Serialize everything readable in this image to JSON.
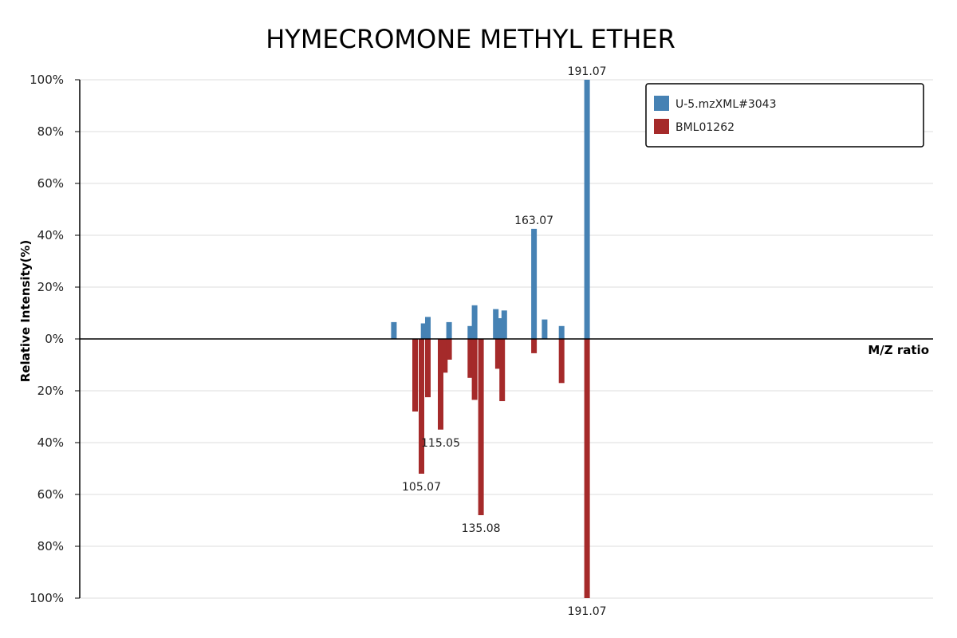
{
  "chart_data": {
    "type": "bar",
    "title": "HYMECROMONE METHYL ETHER",
    "xlabel": "M/Z ratio",
    "ylabel": "Relative Intensity(%)",
    "y_ticks_top": [
      "100%",
      "80%",
      "60%",
      "40%",
      "20%",
      "0%"
    ],
    "y_ticks_bottom": [
      "20%",
      "40%",
      "60%",
      "80%",
      "100%"
    ],
    "xlim": [
      0,
      201
    ],
    "ylim": [
      -100,
      100
    ],
    "grid": true,
    "legend_position": "top-right",
    "colors": {
      "top": "#4682b4",
      "bottom": "#a52a2a"
    },
    "series": [
      {
        "name": "U-5.mzXML#3043",
        "direction": "up",
        "peaks": [
          {
            "mz": 74.0,
            "intensity": 6.5
          },
          {
            "mz": 81.0,
            "intensity": 6.0
          },
          {
            "mz": 82.0,
            "intensity": 8.5
          },
          {
            "mz": 87.0,
            "intensity": 6.5
          },
          {
            "mz": 92.0,
            "intensity": 5.0
          },
          {
            "mz": 93.0,
            "intensity": 13.0
          },
          {
            "mz": 98.0,
            "intensity": 11.5
          },
          {
            "mz": 99.0,
            "intensity": 8.0
          },
          {
            "mz": 100.0,
            "intensity": 11.0
          },
          {
            "mz": 107.0,
            "intensity": 42.5,
            "label": "163.07"
          },
          {
            "mz": 109.5,
            "intensity": 7.5
          },
          {
            "mz": 113.5,
            "intensity": 5.0
          },
          {
            "mz": 119.5,
            "intensity": 100,
            "label": "191.07"
          }
        ]
      },
      {
        "name": "BML01262",
        "direction": "down",
        "peaks": [
          {
            "mz": 79.0,
            "intensity": 28.0
          },
          {
            "mz": 80.5,
            "intensity": 52.0,
            "label": "105.07"
          },
          {
            "mz": 82.0,
            "intensity": 22.5
          },
          {
            "mz": 85.0,
            "intensity": 35.0,
            "label": "115.05"
          },
          {
            "mz": 86.0,
            "intensity": 13.0
          },
          {
            "mz": 87.0,
            "intensity": 8.0
          },
          {
            "mz": 92.0,
            "intensity": 15.0
          },
          {
            "mz": 93.0,
            "intensity": 23.5
          },
          {
            "mz": 94.5,
            "intensity": 68.0,
            "label": "135.08"
          },
          {
            "mz": 98.5,
            "intensity": 11.5
          },
          {
            "mz": 99.5,
            "intensity": 24.0
          },
          {
            "mz": 107.0,
            "intensity": 5.5
          },
          {
            "mz": 113.5,
            "intensity": 17.0
          },
          {
            "mz": 119.5,
            "intensity": 100,
            "label": "191.07"
          }
        ]
      }
    ]
  }
}
